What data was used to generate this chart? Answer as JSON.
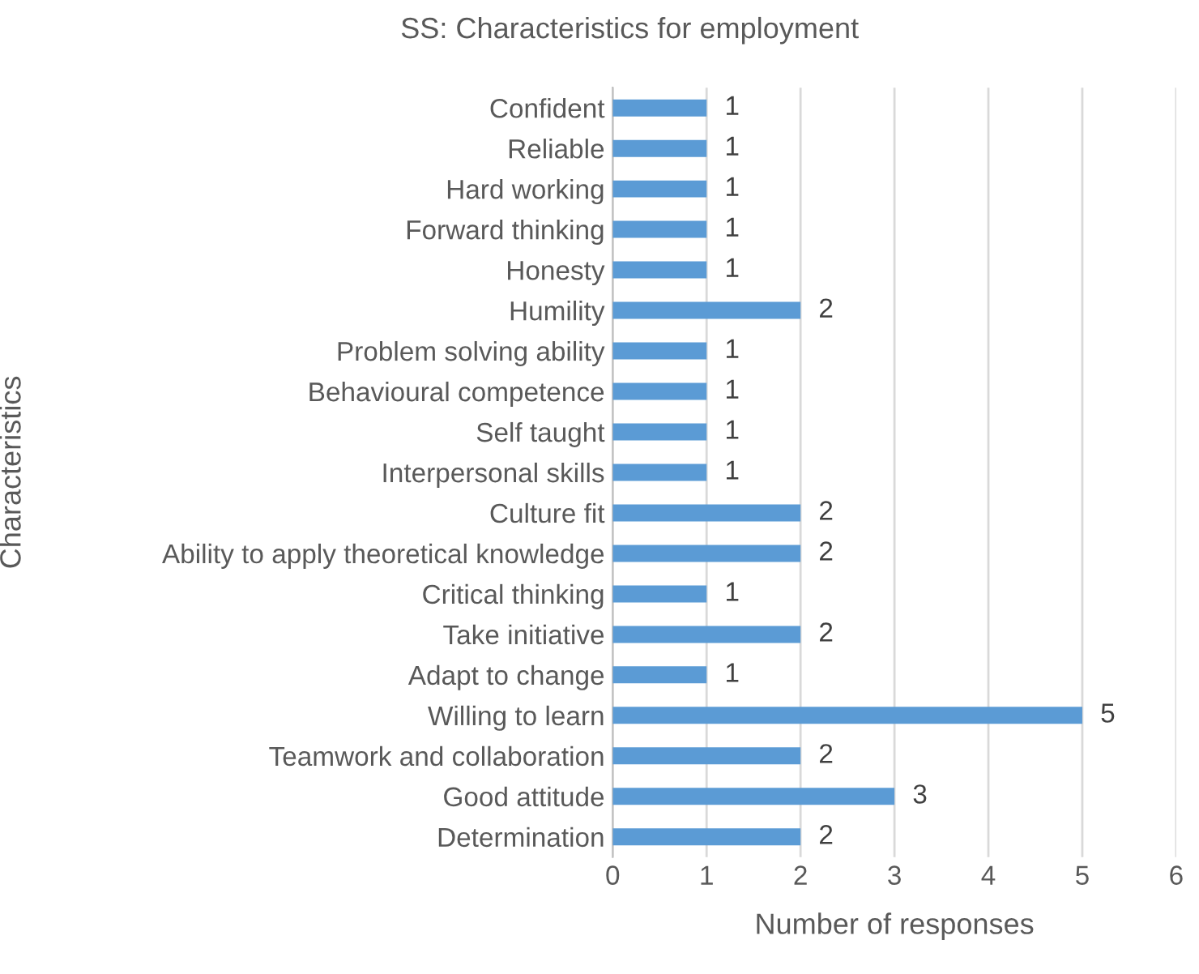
{
  "chart_data": {
    "type": "bar",
    "orientation": "horizontal",
    "title": "SS: Characteristics for employment",
    "xlabel": "Number of responses",
    "ylabel": "Characteristics",
    "categories": [
      "Confident",
      "Reliable",
      "Hard working",
      "Forward thinking",
      "Honesty",
      "Humility",
      "Problem solving ability",
      "Behavioural competence",
      "Self taught",
      "Interpersonal skills",
      "Culture fit",
      "Ability to apply theoretical knowledge",
      "Critical thinking",
      "Take initiative",
      "Adapt to change",
      "Willing to learn",
      "Teamwork and collaboration",
      "Good attitude",
      "Determination"
    ],
    "values": [
      1,
      1,
      1,
      1,
      1,
      2,
      1,
      1,
      1,
      1,
      2,
      2,
      1,
      2,
      1,
      5,
      2,
      3,
      2
    ],
    "color": "#5b9bd5",
    "xlim": [
      0,
      6
    ],
    "xticks": [
      0,
      1,
      2,
      3,
      4,
      5,
      6
    ],
    "grid": "x",
    "data_labels": true,
    "legend": false
  }
}
